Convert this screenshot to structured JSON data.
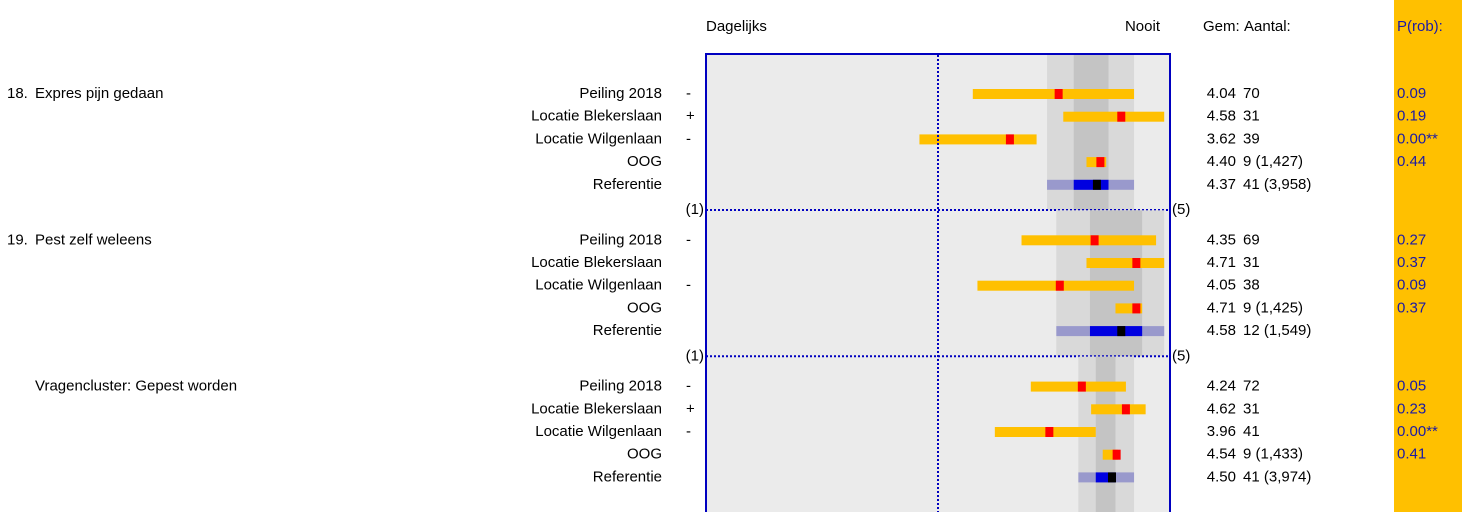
{
  "chart_data": {
    "type": "interval",
    "headers": {
      "left": "Dagelijks",
      "right": "Nooit",
      "mean": "Gem:",
      "count": "Aantal:",
      "prob": "P(rob):"
    },
    "xlim": [
      1,
      5
    ],
    "xticks": [
      {
        "value": 1,
        "label": "(1)"
      },
      {
        "value": 5,
        "label": "(5)"
      }
    ],
    "center_line": 3,
    "colors": {
      "interval": "#ffc000",
      "mean": "#ff0000",
      "ref_outer": "#9999cc",
      "ref_inner": "#0000e0",
      "ref_mean": "#000000",
      "frame": "#0000c0",
      "prob_bg": "#ffc000",
      "prob_text": "#1a1aa6"
    },
    "groups": [
      {
        "number": "18.",
        "title": "Expres pijn gedaan",
        "rows": [
          {
            "label": "Peiling 2018",
            "sign": "-",
            "mean": 4.04,
            "low": 3.3,
            "high": 4.69,
            "n": "70",
            "p": 0.09
          },
          {
            "label": "Locatie Blekerslaan",
            "sign": "+",
            "mean": 4.58,
            "low": 4.08,
            "high": 4.95,
            "n": "31",
            "p": 0.19
          },
          {
            "label": "Locatie Wilgenlaan",
            "sign": "-",
            "mean": 3.62,
            "low": 2.84,
            "high": 3.85,
            "n": "39",
            "p": 0,
            "p_label": "0.00**"
          },
          {
            "label": "OOG",
            "mean": 4.4,
            "mean_label": "4.40",
            "low": 4.28,
            "high": 4.45,
            "n": "9 (1,427)",
            "p": 0.44
          },
          {
            "label": "Referentie",
            "mean": 4.37,
            "low": 3.94,
            "high": 4.69,
            "inner_low": 4.17,
            "inner_high": 4.47,
            "n": "41 (3,958)"
          }
        ]
      },
      {
        "number": "19.",
        "title": "Pest zelf weleens",
        "rows": [
          {
            "label": "Peiling 2018",
            "sign": "-",
            "mean": 4.35,
            "low": 3.72,
            "high": 4.88,
            "n": "69",
            "p": 0.27
          },
          {
            "label": "Locatie Blekerslaan",
            "mean": 4.71,
            "low": 4.28,
            "high": 4.95,
            "n": "31",
            "p": 0.37
          },
          {
            "label": "Locatie Wilgenlaan",
            "sign": "-",
            "mean": 4.05,
            "low": 3.34,
            "high": 4.69,
            "n": "38",
            "p": 0.09
          },
          {
            "label": "OOG",
            "mean": 4.71,
            "low": 4.53,
            "high": 4.76,
            "n": "9 (1,425)",
            "p": 0.37
          },
          {
            "label": "Referentie",
            "mean": 4.58,
            "low": 4.02,
            "high": 4.95,
            "inner_low": 4.31,
            "inner_high": 4.76,
            "n": "12 (1,549)"
          }
        ]
      },
      {
        "title": "Vragencluster: Gepest worden",
        "rows": [
          {
            "label": "Peiling 2018",
            "sign": "-",
            "mean": 4.24,
            "low": 3.8,
            "high": 4.62,
            "n": "72",
            "p": 0.05
          },
          {
            "label": "Locatie Blekerslaan",
            "sign": "+",
            "mean": 4.62,
            "low": 4.32,
            "high": 4.79,
            "n": "31",
            "p": 0.23
          },
          {
            "label": "Locatie Wilgenlaan",
            "sign": "-",
            "mean": 3.96,
            "low": 3.49,
            "high": 4.36,
            "n": "41",
            "p": 0,
            "p_label": "0.00**"
          },
          {
            "label": "OOG",
            "mean": 4.54,
            "low": 4.42,
            "high": 4.55,
            "n": "9 (1,433)",
            "p": 0.41
          },
          {
            "label": "Referentie",
            "mean": 4.5,
            "mean_label": "4.50",
            "low": 4.21,
            "high": 4.69,
            "inner_low": 4.36,
            "inner_high": 4.53,
            "n": "41 (3,974)"
          }
        ]
      }
    ]
  }
}
